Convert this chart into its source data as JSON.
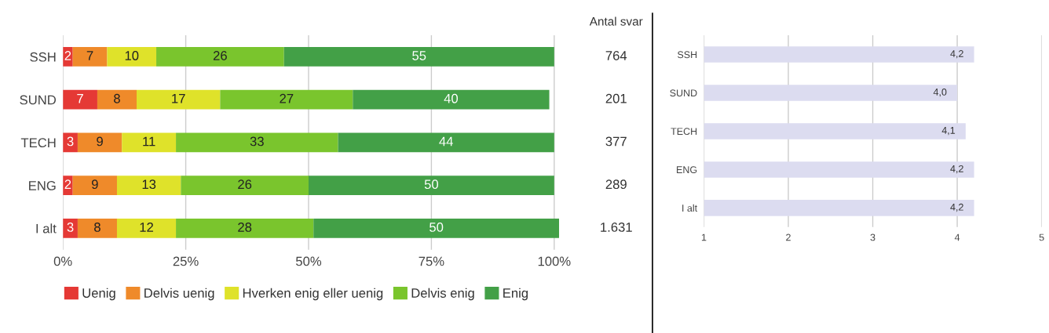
{
  "chart_data": [
    {
      "type": "bar",
      "orientation": "horizontal",
      "stacked": true,
      "categories": [
        "SSH",
        "SUND",
        "TECH",
        "ENG",
        "I alt"
      ],
      "series": [
        {
          "name": "Uenig",
          "color": "#e53935",
          "values": [
            2,
            7,
            3,
            2,
            3
          ]
        },
        {
          "name": "Delvis uenig",
          "color": "#ef8a2a",
          "values": [
            7,
            8,
            9,
            9,
            8
          ]
        },
        {
          "name": "Hverken enig eller uenig",
          "color": "#dfe22a",
          "values": [
            10,
            17,
            11,
            13,
            12
          ]
        },
        {
          "name": "Delvis enig",
          "color": "#7ac52d",
          "values": [
            26,
            27,
            33,
            26,
            28
          ]
        },
        {
          "name": "Enig",
          "color": "#43a047",
          "values": [
            55,
            40,
            44,
            50,
            50
          ]
        }
      ],
      "xlim": [
        0,
        101
      ],
      "xticks": [
        {
          "value": 0,
          "label": "0%"
        },
        {
          "value": 25,
          "label": "25%"
        },
        {
          "value": 50,
          "label": "50%"
        },
        {
          "value": 75,
          "label": "75%"
        },
        {
          "value": 100,
          "label": "100%"
        }
      ],
      "grid": "x",
      "legend": "bottom",
      "data_labels": true,
      "annotations": [
        "Antal svar",
        "764",
        "201",
        "377",
        "289",
        "1.631"
      ]
    },
    {
      "type": "bar",
      "orientation": "horizontal",
      "categories": [
        "SSH",
        "SUND",
        "TECH",
        "ENG",
        "I alt"
      ],
      "series": [
        {
          "color": "#dcdcf0",
          "values": [
            4.2,
            4.0,
            4.1,
            4.2,
            4.2
          ],
          "value_labels": [
            "4,2",
            "4,0",
            "4,1",
            "4,2",
            "4,2"
          ]
        }
      ],
      "xlim": [
        1,
        5
      ],
      "xticks": [
        1,
        2,
        3,
        4,
        5
      ],
      "grid": "x"
    }
  ]
}
